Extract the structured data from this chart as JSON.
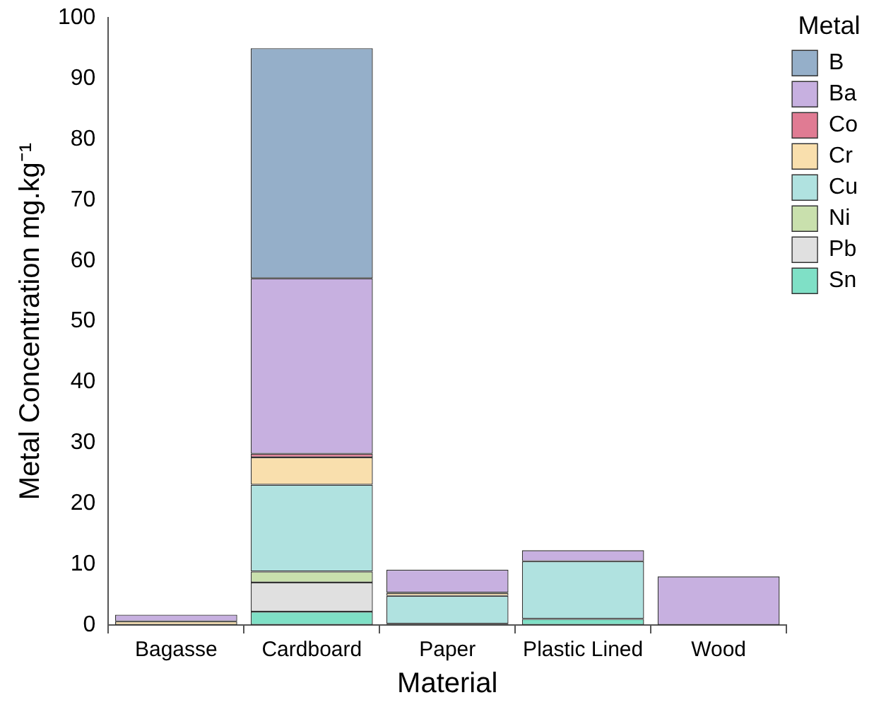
{
  "chart_data": {
    "type": "bar",
    "stacked": true,
    "xlabel": "Material",
    "ylabel": "Metal Concentration mg.kg⁻¹",
    "legend_title": "Metal",
    "legend": "top right",
    "categories": [
      "Bagasse",
      "Cardboard",
      "Paper",
      "Plastic Lined",
      "Wood"
    ],
    "ylim": [
      0,
      100
    ],
    "yticks": [
      0,
      10,
      20,
      30,
      40,
      50,
      60,
      70,
      80,
      90,
      100
    ],
    "grid": false,
    "series": [
      {
        "name": "Sn",
        "color": "#7fe0c6",
        "values": [
          0,
          2.2,
          0.2,
          1.0,
          0
        ]
      },
      {
        "name": "Pb",
        "color": "#e0e0e0",
        "values": [
          0,
          4.8,
          0,
          0,
          0
        ]
      },
      {
        "name": "Ni",
        "color": "#c9e0ad",
        "values": [
          0,
          1.8,
          0,
          0,
          0
        ]
      },
      {
        "name": "Cu",
        "color": "#b0e2e0",
        "values": [
          0,
          14.3,
          4.6,
          9.5,
          0
        ]
      },
      {
        "name": "Cr",
        "color": "#f9dfad",
        "values": [
          0.6,
          4.5,
          0.5,
          0,
          0
        ]
      },
      {
        "name": "Co",
        "color": "#e07b93",
        "values": [
          0,
          0.6,
          0,
          0,
          0
        ]
      },
      {
        "name": "Ba",
        "color": "#c7b0e0",
        "values": [
          1.1,
          28.9,
          3.8,
          1.8,
          8.0
        ]
      },
      {
        "name": "B",
        "color": "#95afc9",
        "values": [
          0,
          37.9,
          0,
          0,
          0
        ]
      }
    ]
  }
}
